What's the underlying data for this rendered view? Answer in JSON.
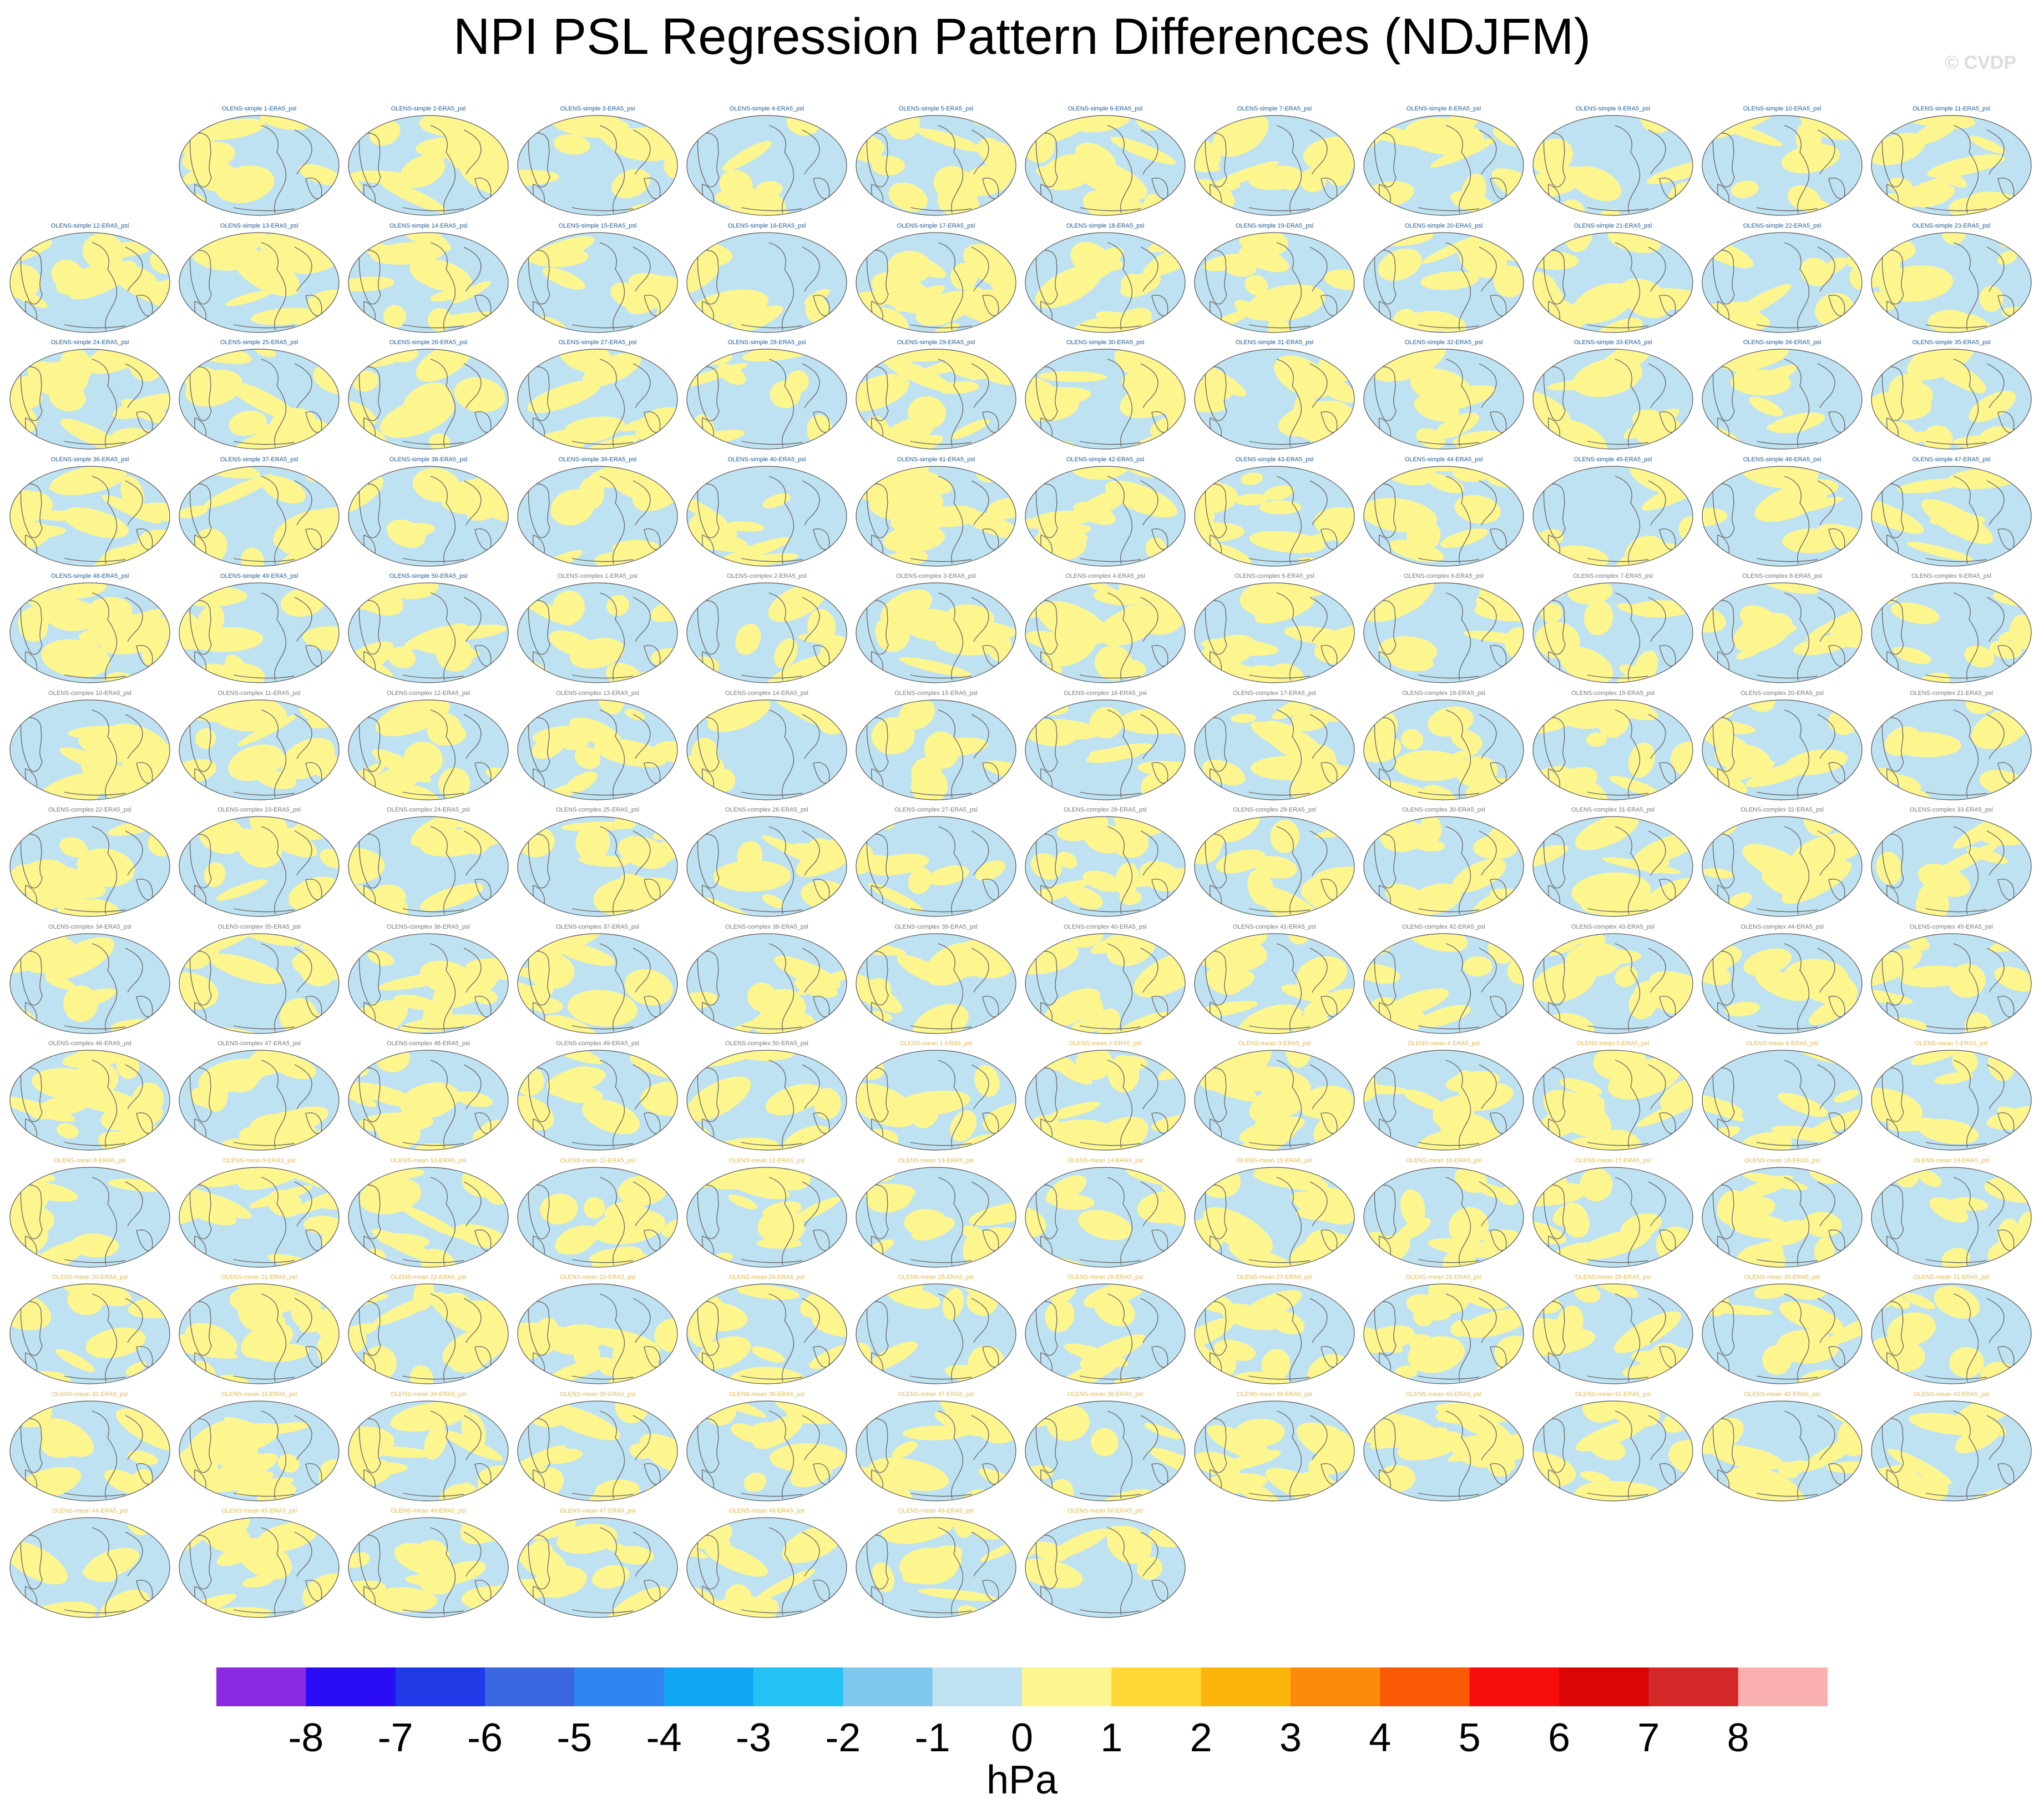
{
  "title": "NPI PSL Regression Pattern Differences (NDJFM)",
  "watermark": "© CVDP",
  "colors": {
    "negative": "#bfe2f2",
    "positive": "#fdf68f",
    "simple_title": "#1f5c96",
    "complex_title": "#7a7a7a",
    "mean_title": "#e0b84e",
    "coast": "#6a6a6a"
  },
  "chart_data": {
    "type": "map-grid",
    "title": "NPI PSL Regression Pattern Differences (NDJFM)",
    "variable": "psl",
    "reference": "ERA5",
    "season": "NDJFM",
    "panel_groups": [
      {
        "name": "OLENS-simple",
        "count": 50
      },
      {
        "name": "OLENS-complex",
        "count": 50
      },
      {
        "name": "OLENS-mean",
        "count": 50
      }
    ],
    "panel_titles": [
      "OLENS-simple 1-ERA5_psl",
      "OLENS-simple 2-ERA5_psl",
      "OLENS-simple 3-ERA5_psl",
      "OLENS-simple 4-ERA5_psl",
      "OLENS-simple 5-ERA5_psl",
      "OLENS-simple 6-ERA5_psl",
      "OLENS-simple 7-ERA5_psl",
      "OLENS-simple 8-ERA5_psl",
      "OLENS-simple 9-ERA5_psl",
      "OLENS-simple 10-ERA5_psl",
      "OLENS-simple 11-ERA5_psl",
      "OLENS-simple 12-ERA5_psl",
      "OLENS-simple 13-ERA5_psl",
      "OLENS-simple 14-ERA5_psl",
      "OLENS-simple 15-ERA5_psl",
      "OLENS-simple 16-ERA5_psl",
      "OLENS-simple 17-ERA5_psl",
      "OLENS-simple 18-ERA5_psl",
      "OLENS-simple 19-ERA5_psl",
      "OLENS-simple 20-ERA5_psl",
      "OLENS-simple 21-ERA5_psl",
      "OLENS-simple 22-ERA5_psl",
      "OLENS-simple 23-ERA5_psl",
      "OLENS-simple 24-ERA5_psl",
      "OLENS-simple 25-ERA5_psl",
      "OLENS-simple 26-ERA5_psl",
      "OLENS-simple 27-ERA5_psl",
      "OLENS-simple 28-ERA5_psl",
      "OLENS-simple 29-ERA5_psl",
      "OLENS-simple 30-ERA5_psl",
      "OLENS-simple 31-ERA5_psl",
      "OLENS-simple 32-ERA5_psl",
      "OLENS-simple 33-ERA5_psl",
      "OLENS-simple 34-ERA5_psl",
      "OLENS-simple 35-ERA5_psl",
      "OLENS-simple 36-ERA5_psl",
      "OLENS-simple 37-ERA5_psl",
      "OLENS-simple 38-ERA5_psl",
      "OLENS-simple 39-ERA5_psl",
      "OLENS-simple 40-ERA5_psl",
      "OLENS-simple 41-ERA5_psl",
      "OLENS-simple 42-ERA5_psl",
      "OLENS-simple 43-ERA5_psl",
      "OLENS-simple 44-ERA5_psl",
      "OLENS-simple 45-ERA5_psl",
      "OLENS-simple 46-ERA5_psl",
      "OLENS-simple 47-ERA5_psl",
      "OLENS-simple 48-ERA5_psl",
      "OLENS-simple 49-ERA5_psl",
      "OLENS-simple 50-ERA5_psl",
      "OLENS-complex 1-ERA5_psl",
      "OLENS-complex 2-ERA5_psl",
      "OLENS-complex 3-ERA5_psl",
      "OLENS-complex 4-ERA5_psl",
      "OLENS-complex 5-ERA5_psl",
      "OLENS-complex 6-ERA5_psl",
      "OLENS-complex 7-ERA5_psl",
      "OLENS-complex 8-ERA5_psl",
      "OLENS-complex 9-ERA5_psl",
      "OLENS-complex 10-ERA5_psl",
      "OLENS-complex 11-ERA5_psl",
      "OLENS-complex 12-ERA5_psl",
      "OLENS-complex 13-ERA5_psl",
      "OLENS-complex 14-ERA5_psl",
      "OLENS-complex 15-ERA5_psl",
      "OLENS-complex 16-ERA5_psl",
      "OLENS-complex 17-ERA5_psl",
      "OLENS-complex 18-ERA5_psl",
      "OLENS-complex 19-ERA5_psl",
      "OLENS-complex 20-ERA5_psl",
      "OLENS-complex 21-ERA5_psl",
      "OLENS-complex 22-ERA5_psl",
      "OLENS-complex 23-ERA5_psl",
      "OLENS-complex 24-ERA5_psl",
      "OLENS-complex 25-ERA5_psl",
      "OLENS-complex 26-ERA5_psl",
      "OLENS-complex 27-ERA5_psl",
      "OLENS-complex 28-ERA5_psl",
      "OLENS-complex 29-ERA5_psl",
      "OLENS-complex 30-ERA5_psl",
      "OLENS-complex 31-ERA5_psl",
      "OLENS-complex 32-ERA5_psl",
      "OLENS-complex 33-ERA5_psl",
      "OLENS-complex 34-ERA5_psl",
      "OLENS-complex 35-ERA5_psl",
      "OLENS-complex 36-ERA5_psl",
      "OLENS-complex 37-ERA5_psl",
      "OLENS-complex 38-ERA5_psl",
      "OLENS-complex 39-ERA5_psl",
      "OLENS-complex 40-ERA5_psl",
      "OLENS-complex 41-ERA5_psl",
      "OLENS-complex 42-ERA5_psl",
      "OLENS-complex 43-ERA5_psl",
      "OLENS-complex 44-ERA5_psl",
      "OLENS-complex 45-ERA5_psl",
      "OLENS-complex 46-ERA5_psl",
      "OLENS-complex 47-ERA5_psl",
      "OLENS-complex 48-ERA5_psl",
      "OLENS-complex 49-ERA5_psl",
      "OLENS-complex 50-ERA5_psl",
      "OLENS-mean 1-ERA5_psl",
      "OLENS-mean 2-ERA5_psl",
      "OLENS-mean 3-ERA5_psl",
      "OLENS-mean 4-ERA5_psl",
      "OLENS-mean 5-ERA5_psl",
      "OLENS-mean 6-ERA5_psl",
      "OLENS-mean 7-ERA5_psl",
      "OLENS-mean 8-ERA5_psl",
      "OLENS-mean 9-ERA5_psl",
      "OLENS-mean 10-ERA5_psl",
      "OLENS-mean 11-ERA5_psl",
      "OLENS-mean 12-ERA5_psl",
      "OLENS-mean 13-ERA5_psl",
      "OLENS-mean 14-ERA5_psl",
      "OLENS-mean 15-ERA5_psl",
      "OLENS-mean 16-ERA5_psl",
      "OLENS-mean 17-ERA5_psl",
      "OLENS-mean 18-ERA5_psl",
      "OLENS-mean 19-ERA5_psl",
      "OLENS-mean 20-ERA5_psl",
      "OLENS-mean 21-ERA5_psl",
      "OLENS-mean 22-ERA5_psl",
      "OLENS-mean 23-ERA5_psl",
      "OLENS-mean 24-ERA5_psl",
      "OLENS-mean 25-ERA5_psl",
      "OLENS-mean 26-ERA5_psl",
      "OLENS-mean 27-ERA5_psl",
      "OLENS-mean 28-ERA5_psl",
      "OLENS-mean 29-ERA5_psl",
      "OLENS-mean 30-ERA5_psl",
      "OLENS-mean 31-ERA5_psl",
      "OLENS-mean 32-ERA5_psl",
      "OLENS-mean 33-ERA5_psl",
      "OLENS-mean 34-ERA5_psl",
      "OLENS-mean 35-ERA5_psl",
      "OLENS-mean 36-ERA5_psl",
      "OLENS-mean 37-ERA5_psl",
      "OLENS-mean 38-ERA5_psl",
      "OLENS-mean 39-ERA5_psl",
      "OLENS-mean 40-ERA5_psl",
      "OLENS-mean 41-ERA5_psl",
      "OLENS-mean 42-ERA5_psl",
      "OLENS-mean 43-ERA5_psl",
      "OLENS-mean 44-ERA5_psl",
      "OLENS-mean 45-ERA5_psl",
      "OLENS-mean 46-ERA5_psl",
      "OLENS-mean 47-ERA5_psl",
      "OLENS-mean 48-ERA5_psl",
      "OLENS-mean 49-ERA5_psl",
      "OLENS-mean 50-ERA5_psl"
    ],
    "colorbar": {
      "units": "hPa",
      "tick_labels": [
        "-8",
        "-7",
        "-6",
        "-5",
        "-4",
        "-3",
        "-2",
        "-1",
        "0",
        "1",
        "2",
        "3",
        "4",
        "5",
        "6",
        "7",
        "8"
      ],
      "colors": [
        "#8a2be2",
        "#2a0cf4",
        "#1f39e6",
        "#3a66e0",
        "#2f86f0",
        "#12a5f5",
        "#24c1f5",
        "#7ec8ee",
        "#bfe2f2",
        "#fdf68f",
        "#fdd835",
        "#fcb50a",
        "#fb8a0a",
        "#fa5a05",
        "#f80d0d",
        "#dc0505",
        "#d42828",
        "#fbb0b0"
      ]
    }
  }
}
